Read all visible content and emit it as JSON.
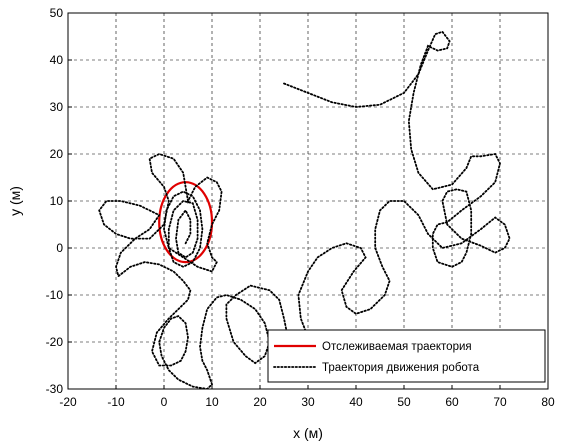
{
  "chart_data": {
    "type": "line",
    "title": "",
    "xlabel": "x (м)",
    "ylabel": "y (м)",
    "xlim": [
      -20,
      80
    ],
    "ylim": [
      -30,
      50
    ],
    "x_ticks": [
      -20,
      -10,
      0,
      10,
      20,
      30,
      40,
      50,
      60,
      70,
      80
    ],
    "y_ticks": [
      -30,
      -20,
      -10,
      0,
      10,
      20,
      30,
      40,
      50
    ],
    "grid": true,
    "legend_position": "bottom-right",
    "series": [
      {
        "name": "Отслеживаемая траектория",
        "color": "#e00000",
        "style": "solid",
        "shape": "ellipse",
        "center": [
          4.5,
          5.5
        ],
        "radius_x": 5.5,
        "radius_y": 8.5
      },
      {
        "name": "Траектория движения робота",
        "color": "#000000",
        "style": "dotted",
        "points": [
          [
            25,
            35
          ],
          [
            30,
            33
          ],
          [
            35,
            31
          ],
          [
            40,
            30
          ],
          [
            45,
            30.5
          ],
          [
            50,
            33
          ],
          [
            53,
            37
          ],
          [
            55,
            42
          ],
          [
            56.5,
            45.5
          ],
          [
            58,
            46
          ],
          [
            59.5,
            44
          ],
          [
            59,
            42.5
          ],
          [
            57,
            42
          ],
          [
            55,
            43
          ],
          [
            53.5,
            39
          ],
          [
            52,
            33
          ],
          [
            51,
            27
          ],
          [
            51.5,
            21
          ],
          [
            53,
            16
          ],
          [
            56,
            12.5
          ],
          [
            60,
            13.5
          ],
          [
            63,
            17
          ],
          [
            64,
            19.5
          ],
          [
            66,
            19.5
          ],
          [
            69,
            20
          ],
          [
            70,
            18
          ],
          [
            69,
            14
          ],
          [
            66,
            11
          ],
          [
            62,
            8
          ],
          [
            59,
            5.5
          ],
          [
            57,
            5
          ],
          [
            56,
            3
          ],
          [
            56,
            0
          ],
          [
            57,
            -3
          ],
          [
            60,
            -4
          ],
          [
            62,
            -3
          ],
          [
            63,
            -1
          ],
          [
            64,
            3
          ],
          [
            64,
            8
          ],
          [
            63,
            12
          ],
          [
            61,
            12.5
          ],
          [
            59,
            12
          ],
          [
            58,
            10
          ],
          [
            59,
            5
          ],
          [
            62,
            2
          ],
          [
            66,
            0.5
          ],
          [
            69,
            -1
          ],
          [
            71,
            0
          ],
          [
            72,
            2
          ],
          [
            71,
            5
          ],
          [
            69,
            6.5
          ],
          [
            66,
            4
          ],
          [
            62,
            1
          ],
          [
            58,
            0
          ],
          [
            55,
            3
          ],
          [
            53,
            7
          ],
          [
            50,
            10
          ],
          [
            47,
            10
          ],
          [
            45,
            8
          ],
          [
            44,
            4
          ],
          [
            44,
            0
          ],
          [
            45.5,
            -4
          ],
          [
            47,
            -7
          ],
          [
            46,
            -10
          ],
          [
            43,
            -13
          ],
          [
            40,
            -14
          ],
          [
            38,
            -12.5
          ],
          [
            37,
            -9
          ],
          [
            39.5,
            -5
          ],
          [
            42,
            -2
          ],
          [
            41,
            0
          ],
          [
            38,
            1
          ],
          [
            35,
            0
          ],
          [
            32,
            -2
          ],
          [
            30,
            -5
          ],
          [
            28,
            -10
          ],
          [
            28.5,
            -15
          ],
          [
            30,
            -19
          ],
          [
            32,
            -23
          ],
          [
            31,
            -25
          ],
          [
            28,
            -24
          ],
          [
            26,
            -20
          ],
          [
            25,
            -15
          ],
          [
            24,
            -11
          ],
          [
            22,
            -9
          ],
          [
            18,
            -8
          ],
          [
            15,
            -10
          ],
          [
            13,
            -12
          ],
          [
            13,
            -15
          ],
          [
            14.5,
            -20
          ],
          [
            17,
            -23
          ],
          [
            19,
            -24.5
          ],
          [
            21,
            -23
          ],
          [
            22,
            -20
          ],
          [
            21,
            -16
          ],
          [
            19,
            -13
          ],
          [
            16,
            -11
          ],
          [
            13,
            -10
          ],
          [
            11,
            -10.5
          ],
          [
            9,
            -13
          ],
          [
            8,
            -17
          ],
          [
            7.5,
            -21
          ],
          [
            8,
            -24
          ],
          [
            9,
            -26
          ],
          [
            10,
            -29
          ],
          [
            9,
            -30
          ],
          [
            6,
            -29.5
          ],
          [
            3,
            -28
          ],
          [
            1,
            -26
          ],
          [
            -0.5,
            -23
          ],
          [
            -1,
            -20
          ],
          [
            0,
            -17
          ],
          [
            1.5,
            -15
          ],
          [
            3,
            -14.5
          ],
          [
            4.5,
            -16
          ],
          [
            5,
            -19
          ],
          [
            4.5,
            -22
          ],
          [
            3.5,
            -24
          ],
          [
            1.5,
            -25
          ],
          [
            -1,
            -25
          ],
          [
            -2.5,
            -22
          ],
          [
            -1.5,
            -18
          ],
          [
            1,
            -15
          ],
          [
            3,
            -13
          ],
          [
            5,
            -11
          ],
          [
            5.5,
            -9
          ],
          [
            4,
            -7
          ],
          [
            2,
            -5
          ],
          [
            -1,
            -3.5
          ],
          [
            -4,
            -3
          ],
          [
            -7,
            -4
          ],
          [
            -9.5,
            -6
          ],
          [
            -10,
            -4
          ],
          [
            -9,
            -1
          ],
          [
            -6,
            2
          ],
          [
            -3,
            4
          ],
          [
            -1,
            7
          ],
          [
            -5,
            9
          ],
          [
            -9,
            10
          ],
          [
            -12,
            10
          ],
          [
            -13.5,
            8
          ],
          [
            -12.5,
            5
          ],
          [
            -10,
            3
          ],
          [
            -7,
            2
          ],
          [
            -3,
            2
          ],
          [
            0,
            5
          ],
          [
            1,
            10
          ],
          [
            0,
            13
          ],
          [
            -2.5,
            16
          ],
          [
            -3,
            19
          ],
          [
            -1,
            20
          ],
          [
            2,
            19
          ],
          [
            4,
            16
          ],
          [
            4.5,
            13
          ],
          [
            5,
            10
          ],
          [
            6.5,
            13
          ],
          [
            9,
            15
          ],
          [
            11,
            14
          ],
          [
            12,
            12
          ],
          [
            11.5,
            8
          ],
          [
            10,
            5
          ],
          [
            9,
            1
          ],
          [
            10,
            -2
          ],
          [
            11,
            -3
          ],
          [
            10,
            -5
          ],
          [
            7,
            -4
          ],
          [
            4,
            -2
          ],
          [
            1,
            0
          ],
          [
            0,
            4
          ],
          [
            0.5,
            8
          ],
          [
            2,
            11
          ],
          [
            4,
            12
          ],
          [
            6,
            11
          ],
          [
            7.5,
            8
          ],
          [
            8,
            4
          ],
          [
            7.5,
            0
          ],
          [
            6,
            -3
          ],
          [
            4,
            -4
          ],
          [
            2,
            -3
          ],
          [
            1,
            0
          ],
          [
            1,
            4
          ],
          [
            2,
            8
          ],
          [
            4,
            10
          ],
          [
            6,
            9.5
          ],
          [
            7,
            6
          ],
          [
            7,
            2
          ],
          [
            6,
            -1
          ],
          [
            4.5,
            -2
          ],
          [
            3,
            -1
          ],
          [
            2.5,
            2
          ],
          [
            3,
            6
          ],
          [
            4.5,
            8
          ],
          [
            5.5,
            6
          ],
          [
            5.5,
            3
          ],
          [
            4.5,
            1
          ]
        ]
      }
    ]
  }
}
